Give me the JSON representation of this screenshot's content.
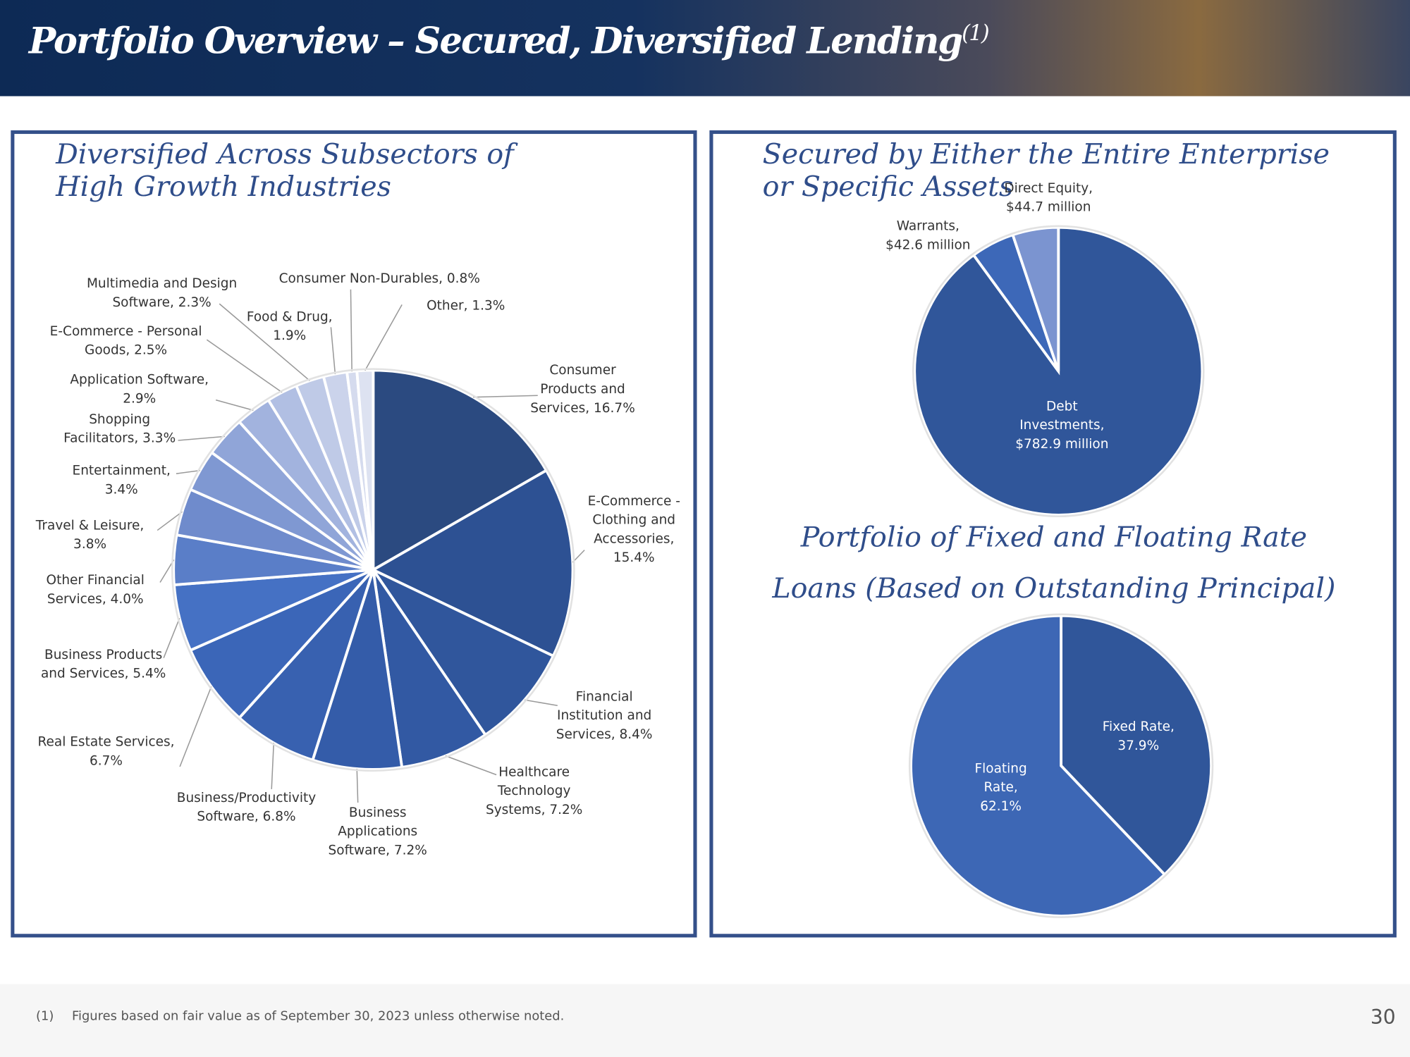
{
  "title": "Portfolio Overview – Secured, Diversified Lending",
  "title_note": "(1)",
  "footnote_marker": "(1)",
  "footnote": "Figures based on fair value as of September 30, 2023 unless otherwise noted.",
  "page_number": "30",
  "chart_data": [
    {
      "type": "pie",
      "title": "Diversified Across Subsectors of High Growth Industries",
      "labels": [
        "Consumer Products and Services, 16.7%",
        "E-Commerce - Clothing and Accessories, 15.4%",
        "Financial Institution and Services, 8.4%",
        "Healthcare Technology Systems, 7.2%",
        "Business Applications Software, 7.2%",
        "Business/Productivity Software, 6.8%",
        "Real Estate Services, 6.7%",
        "Business Products and Services, 5.4%",
        "Other Financial Services, 4.0%",
        "Travel & Leisure, 3.8%",
        "Entertainment, 3.4%",
        "Shopping Facilitators, 3.3%",
        "Application Software, 2.9%",
        "E-Commerce - Personal Goods, 2.5%",
        "Multimedia and Design Software, 2.3%",
        "Food & Drug, 1.9%",
        "Consumer Non-Durables, 0.8%",
        "Other, 1.3%"
      ],
      "values": [
        16.7,
        15.4,
        8.4,
        7.2,
        7.2,
        6.8,
        6.7,
        5.4,
        4.0,
        3.8,
        3.4,
        3.3,
        2.9,
        2.5,
        2.3,
        1.9,
        0.8,
        1.3
      ],
      "colors": [
        "#2b4a80",
        "#2d5193",
        "#30569c",
        "#3259a3",
        "#345ca9",
        "#3861b0",
        "#3b66b8",
        "#4571c4",
        "#5a7ec8",
        "#6f8bcc",
        "#7f98d2",
        "#90a5d8",
        "#a2b3de",
        "#b1bfe3",
        "#bfcae7",
        "#cbd3eb",
        "#d5dbee",
        "#dde2f1"
      ]
    },
    {
      "type": "pie",
      "title": "Secured by Either the Entire Enterprise or Specific Assets",
      "labels": [
        "Debt Investments, $782.9 million",
        "Warrants, $42.6 million",
        "Direct Equity, $44.7 million"
      ],
      "values": [
        782.9,
        42.6,
        44.7
      ],
      "colors": [
        "#30569a",
        "#3d68b8",
        "#7b94d0"
      ]
    },
    {
      "type": "pie",
      "title": "Portfolio of Fixed and Floating Rate Loans (Based on Outstanding Principal)",
      "labels": [
        "Fixed Rate, 37.9%",
        "Floating Rate, 62.1%"
      ],
      "values": [
        37.9,
        62.1
      ],
      "colors": [
        "#30569a",
        "#3d67b5"
      ]
    }
  ]
}
